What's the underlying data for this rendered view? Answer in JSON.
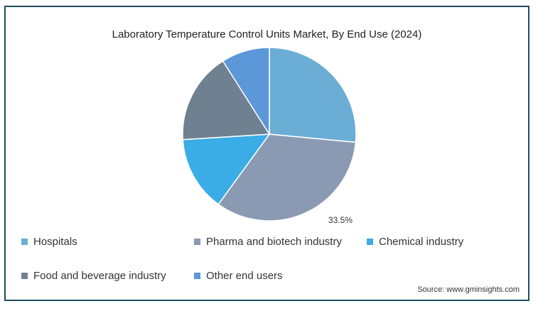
{
  "chart_data": {
    "type": "pie",
    "title": "Laboratory Temperature Control Units Market, By End Use (2024)",
    "slices": [
      {
        "label": "Hospitals",
        "value": 26.5,
        "color": "#6aaed6"
      },
      {
        "label": "Pharma and biotech industry",
        "value": 33.5,
        "color": "#8a9ab3",
        "data_label": "33.5%"
      },
      {
        "label": "Chemical industry",
        "value": 14.0,
        "color": "#3aace6"
      },
      {
        "label": "Food and beverage industry",
        "value": 17.0,
        "color": "#6f8090"
      },
      {
        "label": "Other end users",
        "value": 9.0,
        "color": "#5b97d9"
      }
    ],
    "start_angle": "12 o'clock",
    "direction": "clockwise",
    "legend_position": "bottom"
  },
  "source": "Source: www.gminsights.com"
}
